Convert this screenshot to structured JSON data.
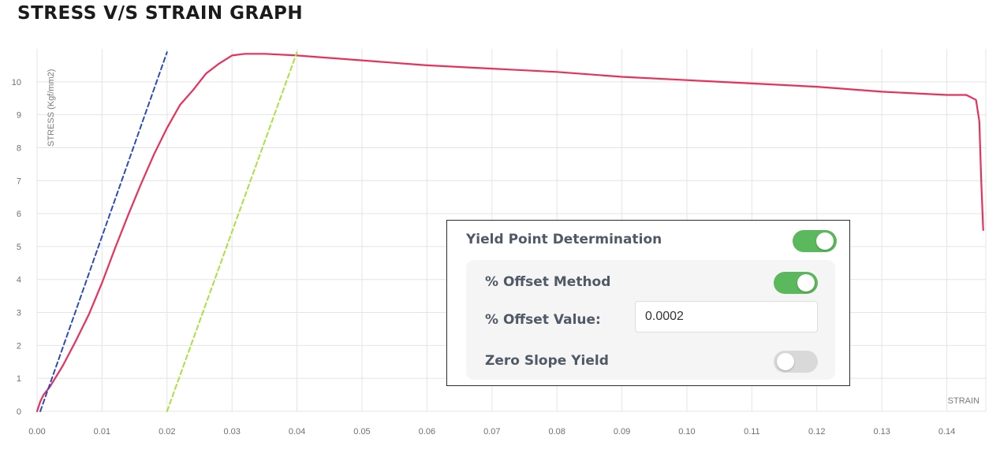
{
  "page": {
    "title": "STRESS V/S STRAIN GRAPH"
  },
  "chart_data": {
    "type": "line",
    "ylabel": "STRESS (Kgf/mm2)",
    "xlabel": "STRAIN",
    "xlim": [
      0,
      0.146
    ],
    "ylim": [
      0,
      11
    ],
    "x_ticks": [
      "0.00",
      "0.01",
      "0.02",
      "0.03",
      "0.04",
      "0.05",
      "0.06",
      "0.07",
      "0.08",
      "0.09",
      "0.10",
      "0.11",
      "0.12",
      "0.13",
      "0.14"
    ],
    "y_ticks": [
      "0",
      "1",
      "2",
      "3",
      "4",
      "5",
      "6",
      "7",
      "8",
      "9",
      "10"
    ],
    "grid": true,
    "series": [
      {
        "color": "#e8305a",
        "style": "solid",
        "points": [
          [
            0.0,
            0.0
          ],
          [
            0.0005,
            0.3
          ],
          [
            0.001,
            0.5
          ],
          [
            0.002,
            0.75
          ],
          [
            0.004,
            1.4
          ],
          [
            0.006,
            2.15
          ],
          [
            0.008,
            2.95
          ],
          [
            0.01,
            3.9
          ],
          [
            0.012,
            4.95
          ],
          [
            0.014,
            5.95
          ],
          [
            0.016,
            6.9
          ],
          [
            0.018,
            7.8
          ],
          [
            0.02,
            8.6
          ],
          [
            0.022,
            9.3
          ],
          [
            0.024,
            9.75
          ],
          [
            0.026,
            10.25
          ],
          [
            0.028,
            10.55
          ],
          [
            0.03,
            10.8
          ],
          [
            0.032,
            10.85
          ],
          [
            0.035,
            10.85
          ],
          [
            0.04,
            10.8
          ],
          [
            0.05,
            10.65
          ],
          [
            0.06,
            10.5
          ],
          [
            0.07,
            10.4
          ],
          [
            0.08,
            10.3
          ],
          [
            0.09,
            10.15
          ],
          [
            0.1,
            10.05
          ],
          [
            0.11,
            9.95
          ],
          [
            0.12,
            9.85
          ],
          [
            0.13,
            9.7
          ],
          [
            0.14,
            9.6
          ],
          [
            0.143,
            9.6
          ],
          [
            0.1445,
            9.45
          ],
          [
            0.145,
            8.8
          ],
          [
            0.1453,
            7.0
          ],
          [
            0.1456,
            5.5
          ]
        ]
      },
      {
        "color": "#2c4bbd",
        "style": "dashed",
        "points": [
          [
            0.0005,
            0.0
          ],
          [
            0.02,
            10.9
          ]
        ]
      },
      {
        "color": "#a6e33f",
        "style": "dashed",
        "points": [
          [
            0.02,
            0.0
          ],
          [
            0.04,
            10.9
          ]
        ]
      }
    ]
  },
  "panel": {
    "yield_label": "Yield Point Determination",
    "yield_on": true,
    "offset_method_label": "% Offset Method",
    "offset_method_on": true,
    "offset_value_label": "% Offset Value:",
    "offset_value": "0.0002",
    "zero_slope_label": "Zero Slope Yield",
    "zero_slope_on": false,
    "toggle_on_color": "#5cb85c",
    "toggle_off_color": "#d9d9d9"
  }
}
